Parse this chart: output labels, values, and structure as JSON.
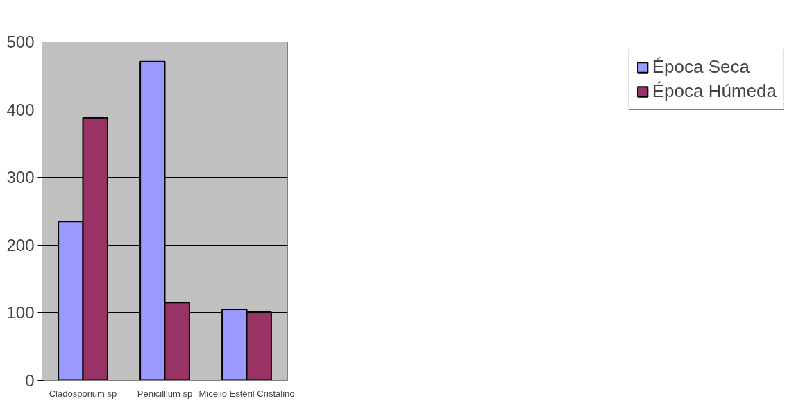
{
  "chart_data": {
    "type": "bar",
    "categories": [
      "Cladosporium sp",
      "Penicillium sp",
      "Micelio Estéril Cristalino"
    ],
    "series": [
      {
        "name": "Época Seca",
        "color": "#9999ff",
        "values": [
          235,
          471,
          105
        ]
      },
      {
        "name": "Época Húmeda",
        "color": "#993366",
        "values": [
          388,
          115,
          101
        ]
      }
    ],
    "ylim": [
      0,
      500
    ],
    "yticks": [
      0,
      100,
      200,
      300,
      400,
      500
    ],
    "grid": "y",
    "legend": "right"
  }
}
